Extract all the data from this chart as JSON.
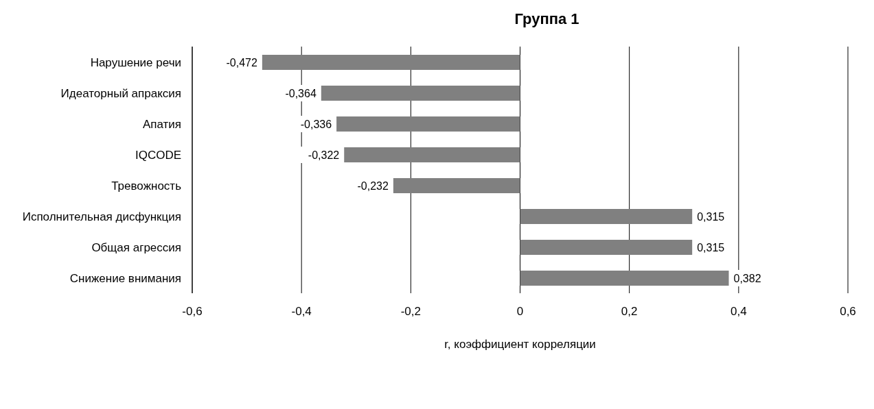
{
  "chart_data": {
    "type": "bar",
    "orientation": "horizontal",
    "title": "Группа 1",
    "xlabel": "r, коэффициент корреляции",
    "categories": [
      "Нарушение речи",
      "Идеаторный апраксия",
      "Апатия",
      "IQCODE",
      "Тревожность",
      "Исполнительная дисфункция",
      "Общая агрессия",
      "Снижение внимания"
    ],
    "values": [
      -0.472,
      -0.364,
      -0.336,
      -0.322,
      -0.232,
      0.315,
      0.315,
      0.382
    ],
    "color": "#808080",
    "xlim": [
      -0.6,
      0.6
    ],
    "xticks": [
      {
        "value": -0.6,
        "label": "-0,6"
      },
      {
        "value": -0.4,
        "label": "-0,4"
      },
      {
        "value": -0.2,
        "label": "-0,2"
      },
      {
        "value": 0,
        "label": "0"
      },
      {
        "value": 0.2,
        "label": "0,2"
      },
      {
        "value": 0.4,
        "label": "0,4"
      },
      {
        "value": 0.6,
        "label": "0,6"
      }
    ],
    "value_labels": [
      "-0,472",
      "-0,364",
      "-0,336",
      "-0,322",
      "-0,232",
      "0,315",
      "0,315",
      "0,382"
    ],
    "grid": "x",
    "legend": false
  }
}
